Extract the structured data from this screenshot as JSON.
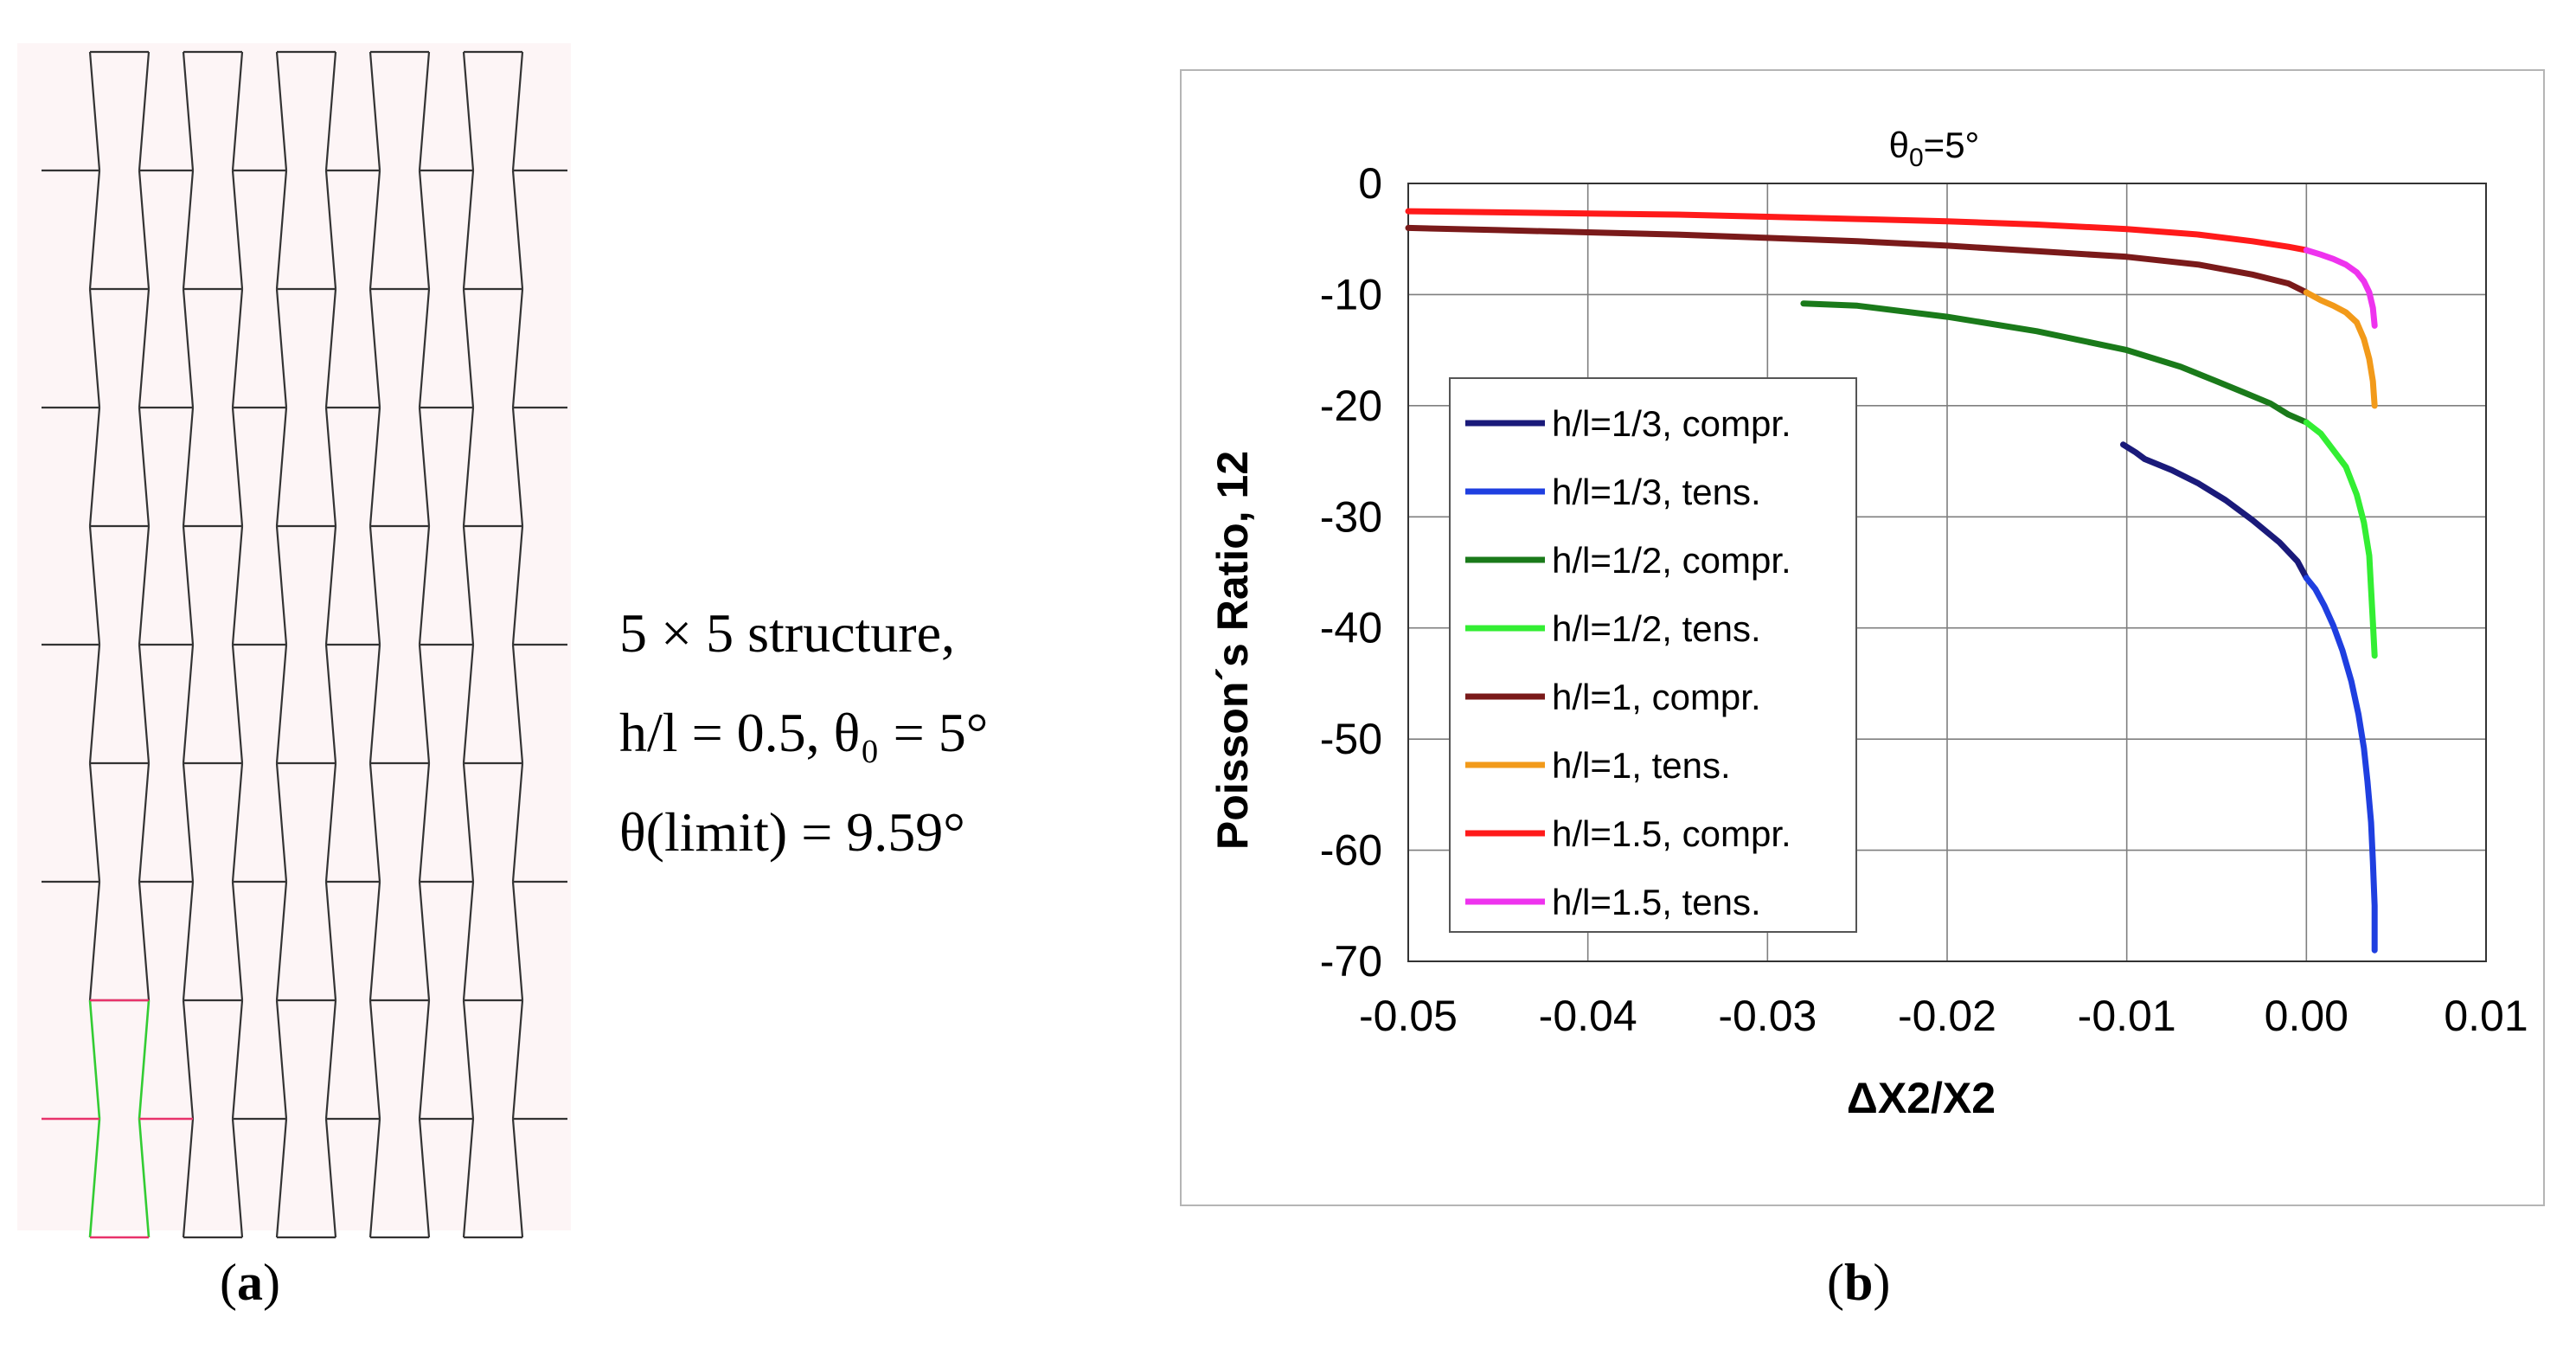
{
  "panel_a": {
    "text_line1": "5 × 5  structure,",
    "text_line2": "h/l = 0.5, θ₀ = 5°",
    "text_line3": "θ(limit) = 9.59°",
    "caption_open": "(",
    "caption_letter": "a",
    "caption_close": ")",
    "colors": {
      "lines": "#333333",
      "highlight_cell": "#33cc33",
      "highlight_ribs": "#e8336b"
    }
  },
  "panel_b": {
    "caption_open": "(",
    "caption_letter": "b",
    "caption_close": ")"
  },
  "chart_data": {
    "type": "line",
    "title_prefix": "θ",
    "title_sub": "0",
    "title_suffix": "=5°",
    "xlabel": "ΔX2/X2",
    "ylabel": "Poisson´s Ratio, 12",
    "xlim": [
      -0.05,
      0.01
    ],
    "ylim": [
      -70,
      0
    ],
    "xticks": [
      -0.05,
      -0.04,
      -0.03,
      -0.02,
      -0.01,
      0.0,
      0.01
    ],
    "xtick_labels": [
      "-0.05",
      "-0.04",
      "-0.03",
      "-0.02",
      "-0.01",
      "0.00",
      "0.01"
    ],
    "yticks": [
      0,
      -10,
      -20,
      -30,
      -40,
      -50,
      -60,
      -70
    ],
    "ytick_labels": [
      "0",
      "-10",
      "-20",
      "-30",
      "-40",
      "-50",
      "-60",
      "-70"
    ],
    "grid": true,
    "legend_position": "left",
    "series": [
      {
        "name": "h/l=1/3, compr.",
        "color": "#1a1a7a",
        "x": [
          -0.0102,
          -0.0095,
          -0.009,
          -0.0075,
          -0.006,
          -0.0045,
          -0.003,
          -0.0015,
          -0.0005,
          0.0
        ],
        "y": [
          -23.5,
          -24.2,
          -24.8,
          -25.8,
          -27.0,
          -28.5,
          -30.3,
          -32.3,
          -34.0,
          -35.5
        ]
      },
      {
        "name": "h/l=1/3, tens.",
        "color": "#1f3fe0",
        "x": [
          0.0,
          0.0005,
          0.001,
          0.0015,
          0.002,
          0.0025,
          0.0029,
          0.0032,
          0.0034,
          0.0036,
          0.0037,
          0.0038,
          0.0038
        ],
        "y": [
          -35.5,
          -36.5,
          -38.0,
          -39.8,
          -42.0,
          -44.8,
          -47.8,
          -50.8,
          -53.8,
          -57.5,
          -61.0,
          -65.0,
          -69.0
        ]
      },
      {
        "name": "h/l=1/2, compr.",
        "color": "#1a7a1a",
        "x": [
          -0.028,
          -0.025,
          -0.02,
          -0.015,
          -0.01,
          -0.007,
          -0.005,
          -0.0035,
          -0.002,
          -0.001,
          0.0
        ],
        "y": [
          -10.8,
          -11.0,
          -12.0,
          -13.3,
          -15.0,
          -16.5,
          -17.8,
          -18.8,
          -19.8,
          -20.8,
          -21.5
        ]
      },
      {
        "name": "h/l=1/2, tens.",
        "color": "#33ee33",
        "x": [
          0.0,
          0.0008,
          0.0015,
          0.0022,
          0.0028,
          0.0032,
          0.0035,
          0.0036,
          0.0037,
          0.0038
        ],
        "y": [
          -21.5,
          -22.5,
          -24.0,
          -25.5,
          -28.0,
          -30.5,
          -33.5,
          -36.5,
          -39.5,
          -42.5
        ]
      },
      {
        "name": "h/l=1, compr.",
        "color": "#7a1a1a",
        "x": [
          -0.05,
          -0.045,
          -0.04,
          -0.035,
          -0.03,
          -0.025,
          -0.02,
          -0.015,
          -0.01,
          -0.006,
          -0.003,
          -0.001,
          0.0
        ],
        "y": [
          -4.0,
          -4.2,
          -4.4,
          -4.6,
          -4.9,
          -5.2,
          -5.6,
          -6.1,
          -6.6,
          -7.3,
          -8.2,
          -9.0,
          -9.8
        ]
      },
      {
        "name": "h/l=1, tens.",
        "color": "#f29a1a",
        "x": [
          0.0,
          0.0008,
          0.0015,
          0.0022,
          0.0028,
          0.0032,
          0.0035,
          0.0037,
          0.0038
        ],
        "y": [
          -9.8,
          -10.5,
          -11.0,
          -11.6,
          -12.5,
          -14.0,
          -15.8,
          -17.8,
          -20.0
        ]
      },
      {
        "name": "h/l=1.5, compr.",
        "color": "#ff1a1a",
        "x": [
          -0.05,
          -0.045,
          -0.04,
          -0.035,
          -0.03,
          -0.025,
          -0.02,
          -0.015,
          -0.01,
          -0.006,
          -0.003,
          -0.001,
          0.0
        ],
        "y": [
          -2.5,
          -2.6,
          -2.7,
          -2.8,
          -3.0,
          -3.2,
          -3.4,
          -3.7,
          -4.1,
          -4.6,
          -5.2,
          -5.7,
          -6.0
        ]
      },
      {
        "name": "h/l=1.5, tens.",
        "color": "#ee33ee",
        "x": [
          0.0,
          0.0008,
          0.0015,
          0.0022,
          0.0028,
          0.0032,
          0.0035,
          0.0037,
          0.0038
        ],
        "y": [
          -6.0,
          -6.4,
          -6.8,
          -7.3,
          -8.0,
          -8.8,
          -9.8,
          -11.2,
          -12.8
        ]
      }
    ]
  }
}
